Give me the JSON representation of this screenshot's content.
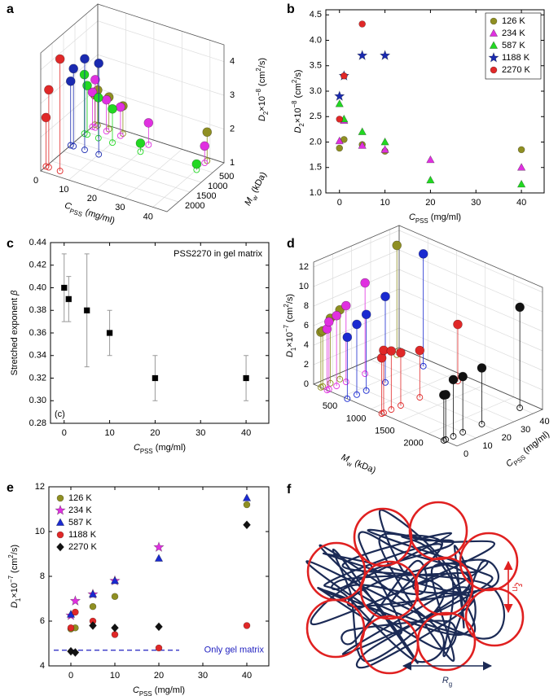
{
  "chart_data": [
    {
      "type": "scatter3d",
      "panel": "a",
      "xlabel": [
        {
          "t": "C",
          "s": "i"
        },
        {
          "t": "PSS",
          "s": "sub"
        },
        {
          "t": " (mg/ml)"
        }
      ],
      "ylabel": [
        {
          "t": "M",
          "s": "i"
        },
        {
          "t": "w",
          "s": "sub"
        },
        {
          "t": " (kDa)"
        }
      ],
      "zlabel": [
        {
          "t": "D",
          "s": "i"
        },
        {
          "t": "2",
          "s": "sub"
        },
        {
          "t": "×10"
        },
        {
          "t": "−8",
          "s": "sup"
        },
        {
          "t": " (cm"
        },
        {
          "t": "2",
          "s": "sup"
        },
        {
          "t": "/s)"
        }
      ],
      "xlim": [
        0,
        45
      ],
      "xticks": [
        0,
        10,
        20,
        30,
        40
      ],
      "ylim": [
        0,
        2500
      ],
      "yticks": [
        500,
        1000,
        1500,
        2000
      ],
      "zlim": [
        1,
        4.5
      ],
      "zticks": [
        1,
        2,
        3,
        4
      ],
      "grid": true,
      "series": [
        {
          "mw": 126,
          "color": "#8f8f22",
          "x": [
            0,
            1,
            5,
            10,
            40
          ],
          "values": [
            1.88,
            2.05,
            1.95,
            1.82,
            1.85
          ]
        },
        {
          "mw": 234,
          "color": "#e030e0",
          "x": [
            0,
            1,
            5,
            10,
            20,
            40
          ],
          "values": [
            2.02,
            2.42,
            1.93,
            1.85,
            1.65,
            1.5
          ]
        },
        {
          "mw": 587,
          "color": "#22d822",
          "x": [
            0,
            1,
            5,
            10,
            20,
            40
          ],
          "values": [
            2.75,
            2.45,
            2.2,
            2.0,
            1.25,
            1.17
          ]
        },
        {
          "mw": 1188,
          "color": "#1a2ab0",
          "x": [
            0,
            1,
            5,
            10
          ],
          "values": [
            2.9,
            3.3,
            3.7,
            3.7
          ]
        },
        {
          "mw": 2270,
          "color": "#e02828",
          "x": [
            0,
            1,
            5
          ],
          "values": [
            2.45,
            3.3,
            4.32
          ]
        }
      ]
    },
    {
      "type": "scatter",
      "panel": "b",
      "xlabel": [
        {
          "t": "C",
          "s": "i"
        },
        {
          "t": "PSS",
          "s": "sub"
        },
        {
          "t": " (mg/ml)"
        }
      ],
      "ylabel": [
        {
          "t": "D",
          "s": "i"
        },
        {
          "t": "2",
          "s": "sub"
        },
        {
          "t": "×10"
        },
        {
          "t": "−8",
          "s": "sup"
        },
        {
          "t": " (cm"
        },
        {
          "t": "2",
          "s": "sup"
        },
        {
          "t": "/s)"
        }
      ],
      "xlim": [
        -3,
        45
      ],
      "xticks": [
        0,
        10,
        20,
        30,
        40
      ],
      "ylim": [
        1.0,
        4.6
      ],
      "yticks": [
        {
          "value": 1,
          "label": "1.0"
        },
        1.5,
        {
          "value": 2,
          "label": "2.0"
        },
        2.5,
        {
          "value": 3,
          "label": "3.0"
        },
        3.5,
        {
          "value": 4,
          "label": "4.0"
        },
        4.5
      ],
      "legend": "upper right",
      "series": [
        {
          "name": "126 K",
          "color": "#8f8f22",
          "marker": "o",
          "x": [
            0,
            1,
            5,
            10,
            40
          ],
          "values": [
            1.88,
            2.05,
            1.95,
            1.82,
            1.85
          ]
        },
        {
          "name": "234 K",
          "color": "#e030e0",
          "marker": "^",
          "x": [
            0,
            1,
            5,
            10,
            20,
            40
          ],
          "values": [
            2.02,
            2.42,
            1.93,
            1.85,
            1.65,
            1.5
          ]
        },
        {
          "name": "587 K",
          "color": "#22d822",
          "marker": "^",
          "x": [
            0,
            1,
            5,
            10,
            20,
            40
          ],
          "values": [
            2.75,
            2.45,
            2.2,
            2.0,
            1.25,
            1.17
          ]
        },
        {
          "name": "1188 K",
          "color": "#1a2ab0",
          "marker": "*",
          "x": [
            0,
            1,
            5,
            10
          ],
          "values": [
            2.9,
            3.3,
            3.7,
            3.7
          ]
        },
        {
          "name": "2270 K",
          "color": "#e02828",
          "marker": "o",
          "x": [
            0,
            1,
            5
          ],
          "values": [
            2.45,
            3.3,
            4.32
          ]
        }
      ]
    },
    {
      "type": "scatter",
      "panel": "c",
      "annotation": "PSS2270 in gel matrix",
      "inset_label": "(c)",
      "xlabel": [
        {
          "t": "C",
          "s": "i"
        },
        {
          "t": "PSS",
          "s": "sub"
        },
        {
          "t": " (mg/ml)"
        }
      ],
      "ylabel": [
        {
          "t": "Stretched exponent "
        },
        {
          "t": "β",
          "s": "i"
        }
      ],
      "xlim": [
        -3,
        45
      ],
      "xticks": [
        0,
        10,
        20,
        30,
        40
      ],
      "ylim": [
        0.28,
        0.44
      ],
      "yticks": [
        0.28,
        {
          "value": 0.3,
          "label": "0.30"
        },
        0.32,
        0.34,
        0.36,
        0.38,
        {
          "value": 0.4,
          "label": "0.40"
        },
        0.42,
        0.44
      ],
      "series": [
        {
          "color": "#000000",
          "marker": "s",
          "x": [
            0,
            1,
            5,
            10,
            20,
            40
          ],
          "values": [
            0.4,
            0.39,
            0.38,
            0.36,
            0.32,
            0.32
          ],
          "errors": [
            0.03,
            0.02,
            0.05,
            0.02,
            0.02,
            0.02
          ]
        }
      ]
    },
    {
      "type": "scatter3d",
      "panel": "d",
      "xlabel": [
        {
          "t": "C",
          "s": "i"
        },
        {
          "t": "PSS",
          "s": "sub"
        },
        {
          "t": " (mg/ml)"
        }
      ],
      "ylabel": [
        {
          "t": "M",
          "s": "i"
        },
        {
          "t": "w",
          "s": "sub"
        },
        {
          "t": " (kDa)"
        }
      ],
      "zlabel": [
        {
          "t": "D",
          "s": "i"
        },
        {
          "t": "1",
          "s": "sub"
        },
        {
          "t": "×10"
        },
        {
          "t": "−7",
          "s": "sup"
        },
        {
          "t": " (cm"
        },
        {
          "t": "2",
          "s": "sup"
        },
        {
          "t": "/s)"
        }
      ],
      "xlim": [
        0,
        45
      ],
      "xticks": [
        0,
        10,
        20,
        30,
        40
      ],
      "ylim": [
        0,
        2500
      ],
      "yticks": [
        500,
        1000,
        1500,
        2000
      ],
      "zlim": [
        0,
        12.5
      ],
      "zticks": [
        0,
        2,
        4,
        6,
        8,
        10,
        12
      ],
      "grid": true,
      "series": [
        {
          "mw": 126,
          "color": "#8f8f22",
          "x": [
            0,
            1,
            5,
            10,
            40
          ],
          "values": [
            5.65,
            5.7,
            6.65,
            7.1,
            11.2
          ]
        },
        {
          "mw": 234,
          "color": "#e030e0",
          "x": [
            0,
            1,
            5,
            10,
            20
          ],
          "values": [
            6.25,
            6.9,
            7.2,
            7.8,
            9.3
          ]
        },
        {
          "mw": 587,
          "color": "#1a2ad0",
          "x": [
            0,
            5,
            10,
            20,
            40
          ],
          "values": [
            6.3,
            7.2,
            7.8,
            8.8,
            11.5
          ]
        },
        {
          "mw": 1188,
          "color": "#e02828",
          "x": [
            0,
            1,
            5,
            10,
            20,
            40
          ],
          "values": [
            5.7,
            6.4,
            6.0,
            5.4,
            4.8,
            5.8
          ]
        },
        {
          "mw": 2270,
          "color": "#111111",
          "x": [
            0,
            1,
            5,
            10,
            20,
            40
          ],
          "values": [
            4.65,
            4.6,
            5.8,
            5.7,
            5.75,
            10.3
          ]
        }
      ]
    },
    {
      "type": "scatter",
      "panel": "e",
      "xlabel": [
        {
          "t": "C",
          "s": "i"
        },
        {
          "t": "PSS",
          "s": "sub"
        },
        {
          "t": " (mg/ml)"
        }
      ],
      "ylabel": [
        {
          "t": "D",
          "s": "i"
        },
        {
          "t": "1",
          "s": "sub"
        },
        {
          "t": "×10"
        },
        {
          "t": "−7",
          "s": "sup"
        },
        {
          "t": " (cm"
        },
        {
          "t": "2",
          "s": "sup"
        },
        {
          "t": "/s)"
        }
      ],
      "xlim": [
        -5,
        45
      ],
      "xticks": [
        0,
        10,
        20,
        30,
        40
      ],
      "ylim": [
        4,
        12
      ],
      "yticks": [
        4,
        6,
        8,
        10,
        12
      ],
      "legend": "upper left",
      "hline": {
        "value": 4.7,
        "label": "Only gel matrix",
        "color": "#2020c0"
      },
      "series": [
        {
          "name": "126 K",
          "color": "#8f8f22",
          "marker": "o",
          "x": [
            0,
            1,
            5,
            10,
            40
          ],
          "values": [
            5.65,
            5.7,
            6.65,
            7.1,
            11.2
          ]
        },
        {
          "name": "234 K",
          "color": "#e030e0",
          "marker": "*",
          "x": [
            0,
            1,
            5,
            10,
            20
          ],
          "values": [
            6.25,
            6.9,
            7.2,
            7.8,
            9.3
          ]
        },
        {
          "name": "587 K",
          "color": "#1a2ad0",
          "marker": "^",
          "x": [
            0,
            5,
            10,
            20,
            40
          ],
          "values": [
            6.3,
            7.2,
            7.8,
            8.8,
            11.5
          ]
        },
        {
          "name": "1188 K",
          "color": "#e02828",
          "marker": "o",
          "x": [
            0,
            1,
            5,
            10,
            20,
            40
          ],
          "values": [
            5.7,
            6.4,
            6.0,
            5.4,
            4.8,
            5.8
          ]
        },
        {
          "name": "2270 K",
          "color": "#111111",
          "marker": "D",
          "x": [
            0,
            1,
            5,
            10,
            20,
            40
          ],
          "values": [
            4.65,
            4.6,
            5.8,
            5.7,
            5.75,
            10.3
          ]
        }
      ]
    }
  ],
  "diagram": {
    "panel": "f",
    "xi": [
      {
        "t": "ξ",
        "s": "i"
      },
      {
        "t": "Π",
        "s": "sub"
      }
    ],
    "rg": [
      {
        "t": "R",
        "s": "i"
      },
      {
        "t": "g",
        "s": "sub"
      }
    ]
  }
}
